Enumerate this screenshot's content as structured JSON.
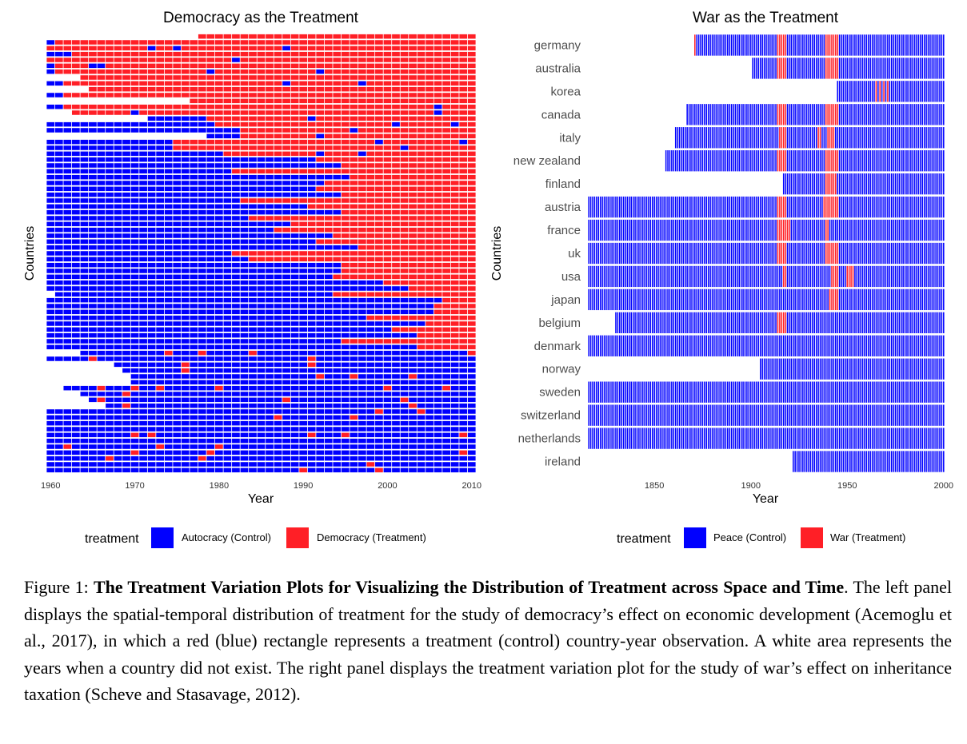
{
  "chart_data": [
    {
      "type": "heatmap",
      "title": "Democracy as the Treatment",
      "xlabel": "Year",
      "ylabel": "Countries",
      "x_ticks": [
        "1960",
        "1970",
        "1980",
        "1990",
        "2000",
        "2010"
      ],
      "xlim": [
        1960,
        2010
      ],
      "row_count": 75,
      "legend": {
        "title": "treatment",
        "items": [
          {
            "label": "Autocracy (Control)",
            "color": "#0000ff"
          },
          {
            "label": "Democracy (Treatment)",
            "color": "#ff1f26"
          }
        ],
        "position": "bottom"
      },
      "colors": {
        "control": "#0000ff",
        "treatment": "#ff1f26"
      }
    },
    {
      "type": "heatmap",
      "title": "War as the Treatment",
      "xlabel": "Year",
      "ylabel": "Countries",
      "x_ticks": [
        "1850",
        "1900",
        "1950",
        "2000"
      ],
      "xlim": [
        1816,
        2000
      ],
      "countries": [
        {
          "name": "germany",
          "start": 1871,
          "wars": [
            [
              1871,
              1871
            ],
            [
              1914,
              1918
            ],
            [
              1939,
              1945
            ]
          ]
        },
        {
          "name": "australia",
          "start": 1901,
          "wars": [
            [
              1914,
              1918
            ],
            [
              1939,
              1945
            ]
          ]
        },
        {
          "name": "korea",
          "start": 1945,
          "wars": [
            [
              1965,
              1965
            ],
            [
              1967,
              1967
            ],
            [
              1969,
              1969
            ],
            [
              1971,
              1971
            ]
          ]
        },
        {
          "name": "canada",
          "start": 1867,
          "wars": [
            [
              1914,
              1918
            ],
            [
              1939,
              1945
            ]
          ]
        },
        {
          "name": "italy",
          "start": 1861,
          "wars": [
            [
              1915,
              1918
            ],
            [
              1935,
              1936
            ],
            [
              1940,
              1943
            ]
          ]
        },
        {
          "name": "new zealand",
          "start": 1856,
          "wars": [
            [
              1914,
              1918
            ],
            [
              1939,
              1945
            ]
          ]
        },
        {
          "name": "finland",
          "start": 1917,
          "wars": [
            [
              1939,
              1944
            ]
          ]
        },
        {
          "name": "austria",
          "start": 1816,
          "wars": [
            [
              1914,
              1918
            ],
            [
              1938,
              1945
            ]
          ]
        },
        {
          "name": "france",
          "start": 1816,
          "wars": [
            [
              1914,
              1920
            ],
            [
              1939,
              1940
            ]
          ]
        },
        {
          "name": "uk",
          "start": 1816,
          "wars": [
            [
              1914,
              1918
            ],
            [
              1939,
              1945
            ]
          ]
        },
        {
          "name": "usa",
          "start": 1816,
          "wars": [
            [
              1917,
              1918
            ],
            [
              1942,
              1945
            ],
            [
              1950,
              1953
            ]
          ]
        },
        {
          "name": "japan",
          "start": 1816,
          "wars": [
            [
              1941,
              1945
            ]
          ]
        },
        {
          "name": "belgium",
          "start": 1830,
          "wars": [
            [
              1914,
              1918
            ]
          ]
        },
        {
          "name": "denmark",
          "start": 1816,
          "wars": []
        },
        {
          "name": "norway",
          "start": 1905,
          "wars": []
        },
        {
          "name": "sweden",
          "start": 1816,
          "wars": []
        },
        {
          "name": "switzerland",
          "start": 1816,
          "wars": []
        },
        {
          "name": "netherlands",
          "start": 1816,
          "wars": []
        },
        {
          "name": "ireland",
          "start": 1922,
          "wars": []
        }
      ],
      "legend": {
        "title": "treatment",
        "items": [
          {
            "label": "Peace (Control)",
            "color": "#0000ff"
          },
          {
            "label": "War (Treatment)",
            "color": "#ff1f26"
          }
        ],
        "position": "bottom"
      },
      "colors": {
        "control": "#0000ff",
        "treatment": "#ff1f26"
      }
    }
  ],
  "caption": {
    "label": "Figure 1: ",
    "bold": "The Treatment Variation Plots for Visualizing the Distribution of Treatment across Space and Time",
    "text": ". The left panel displays the spatial-temporal distribution of treatment for the study of democracy’s effect on economic development (Acemoglu et al., 2017), in which a red (blue) rectangle represents a treatment (control) country-year observation. A white area represents the years when a country did not exist. The right panel displays the treatment variation plot for the study of war’s effect on inheritance taxation (Scheve and Stasavage, 2012)."
  }
}
